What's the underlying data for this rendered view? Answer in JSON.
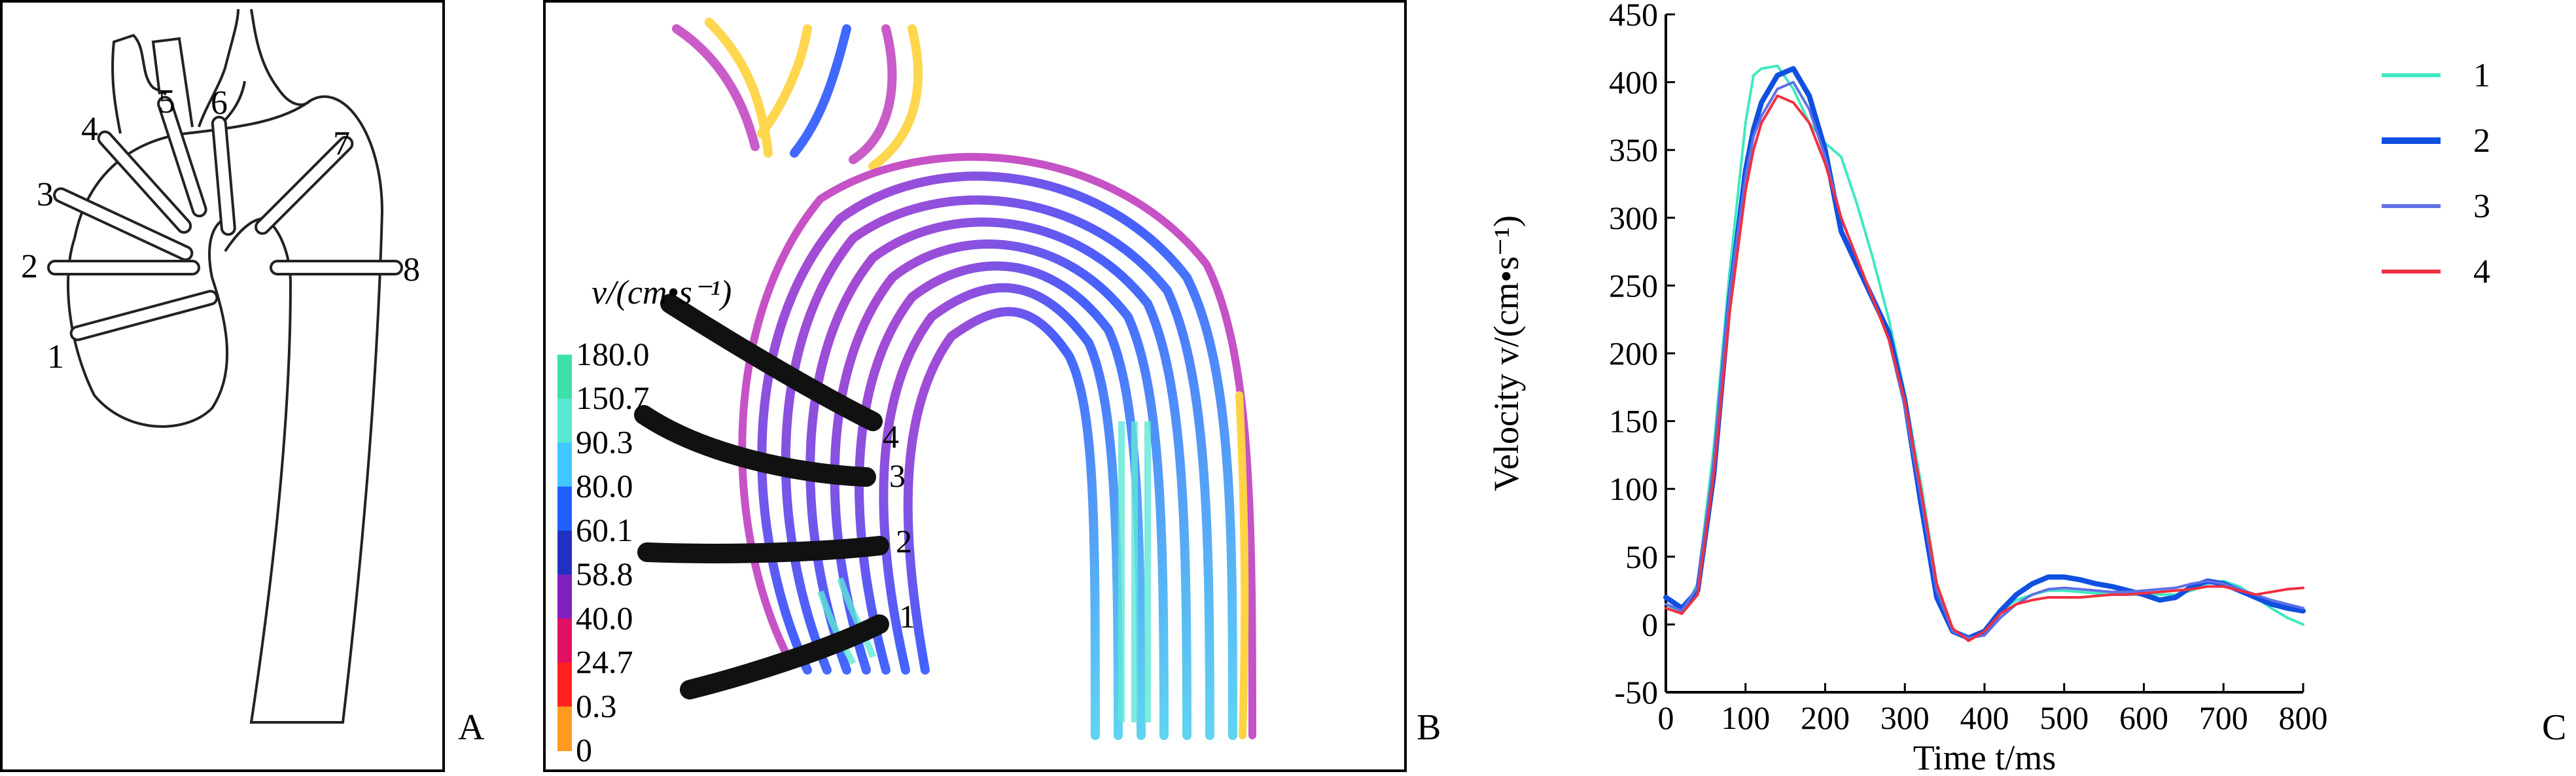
{
  "panels": {
    "a": {
      "label": "A",
      "markers": [
        "1",
        "2",
        "3",
        "4",
        "5",
        "6",
        "7",
        "8"
      ]
    },
    "b": {
      "label": "B",
      "colorbar_title": "v/(cm•s⁻¹)",
      "colorbar_ticks": [
        "180.0",
        "150.7",
        "90.3",
        "80.0",
        "60.1",
        "58.8",
        "40.0",
        "24.7",
        "0.3",
        "0"
      ],
      "colorbar_colors": [
        "#3de0a8",
        "#58e8d0",
        "#40c8ff",
        "#2060ff",
        "#2030c0",
        "#8020c0",
        "#e01060",
        "#ff2020",
        "#ff9a20",
        "#ffe020"
      ],
      "plane_labels": [
        "1",
        "2",
        "3",
        "4"
      ]
    },
    "c": {
      "label": "C"
    }
  },
  "chart_data": {
    "type": "line",
    "xlabel": "Time t/ms",
    "ylabel": "Velocity v/(cm•s⁻¹)",
    "xlim": [
      0,
      800
    ],
    "ylim": [
      -50,
      450
    ],
    "xticks": [
      "0",
      "100",
      "200",
      "300",
      "400",
      "500",
      "600",
      "700",
      "800"
    ],
    "yticks": [
      "-50",
      "0",
      "50",
      "100",
      "150",
      "200",
      "250",
      "300",
      "350",
      "400",
      "450"
    ],
    "legend_position": "top-right",
    "x": [
      0,
      20,
      40,
      60,
      80,
      100,
      110,
      120,
      140,
      160,
      180,
      200,
      220,
      240,
      260,
      280,
      300,
      320,
      340,
      360,
      380,
      400,
      420,
      440,
      460,
      480,
      500,
      520,
      540,
      560,
      580,
      600,
      620,
      640,
      660,
      680,
      700,
      720,
      740,
      760,
      780,
      800
    ],
    "series": [
      {
        "name": "1",
        "color": "#40e8c0",
        "width": 4,
        "values": [
          15,
          8,
          30,
          130,
          260,
          370,
          405,
          410,
          412,
          395,
          370,
          355,
          345,
          310,
          270,
          225,
          170,
          105,
          30,
          -5,
          -10,
          -5,
          10,
          18,
          22,
          25,
          25,
          24,
          23,
          22,
          22,
          22,
          22,
          22,
          25,
          30,
          32,
          28,
          20,
          12,
          5,
          0
        ]
      },
      {
        "name": "2",
        "color": "#1050e0",
        "width": 8,
        "values": [
          20,
          12,
          25,
          110,
          240,
          335,
          365,
          385,
          405,
          410,
          390,
          350,
          290,
          265,
          240,
          215,
          165,
          90,
          20,
          -5,
          -10,
          -5,
          10,
          22,
          30,
          35,
          35,
          33,
          30,
          28,
          25,
          22,
          18,
          20,
          28,
          32,
          30,
          25,
          20,
          15,
          12,
          10
        ]
      },
      {
        "name": "3",
        "color": "#6070e8",
        "width": 4,
        "values": [
          15,
          10,
          28,
          120,
          245,
          330,
          360,
          375,
          395,
          400,
          380,
          345,
          300,
          270,
          240,
          210,
          160,
          95,
          25,
          -5,
          -10,
          -8,
          5,
          15,
          22,
          26,
          27,
          26,
          25,
          24,
          24,
          25,
          26,
          27,
          30,
          32,
          30,
          26,
          22,
          18,
          15,
          12
        ]
      },
      {
        "name": "4",
        "color": "#f03040",
        "width": 4,
        "values": [
          12,
          8,
          22,
          110,
          230,
          320,
          350,
          370,
          390,
          385,
          370,
          340,
          300,
          270,
          240,
          210,
          165,
          100,
          30,
          -3,
          -12,
          -5,
          8,
          15,
          18,
          20,
          20,
          20,
          21,
          22,
          22,
          23,
          24,
          25,
          26,
          28,
          28,
          25,
          22,
          24,
          26,
          27
        ]
      }
    ]
  }
}
